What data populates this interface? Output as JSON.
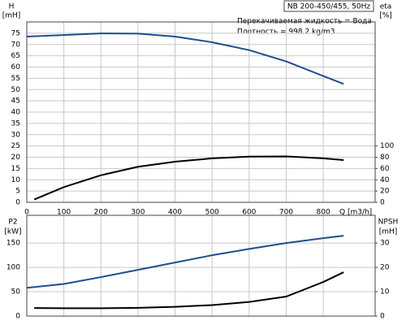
{
  "chart_data": [
    {
      "type": "line",
      "title": "NB 200-450/455, 50Hz",
      "annotations": [
        "Перекачиваемая жидкость = Вода",
        "Плотность = 998.2 kg/m3"
      ],
      "ylabel": "H",
      "yunit": "[mH]",
      "y2label": "eta",
      "y2unit": "[%]",
      "xlabel": "Q [m3/h]",
      "xlim": [
        0,
        940
      ],
      "xticks": [
        0,
        100,
        200,
        300,
        400,
        500,
        600,
        700,
        800
      ],
      "ylim": [
        0,
        80
      ],
      "yticks": [
        0,
        5,
        10,
        15,
        20,
        25,
        30,
        35,
        40,
        45,
        50,
        55,
        60,
        65,
        70,
        75
      ],
      "y2lim": [
        0,
        320
      ],
      "y2ticks": [
        0,
        20,
        40,
        60,
        80,
        100
      ],
      "grid": true,
      "series": [
        {
          "color": "#1f4e8c",
          "x": [
            0,
            100,
            200,
            300,
            400,
            500,
            600,
            700,
            800,
            855
          ],
          "values": [
            73.5,
            74.2,
            74.9,
            74.8,
            73.5,
            71,
            67.5,
            62.5,
            56,
            52.5
          ]
        },
        {
          "color": "#000000",
          "axis": "y2",
          "x": [
            20,
            100,
            200,
            300,
            400,
            500,
            600,
            700,
            800,
            855
          ],
          "values": [
            5,
            27,
            48,
            63,
            72,
            78,
            81,
            81.5,
            78,
            75
          ]
        }
      ]
    },
    {
      "type": "line",
      "ylabel": "P2",
      "yunit": "[kW]",
      "y2label": "NPSH",
      "y2unit": "[mH]",
      "xlim": [
        0,
        940
      ],
      "ylim": [
        0,
        207
      ],
      "yticks": [
        0,
        50,
        100,
        150
      ],
      "y2lim": [
        0,
        41.4
      ],
      "y2ticks": [
        0,
        10,
        20,
        30
      ],
      "grid": true,
      "series": [
        {
          "color": "#1f4e8c",
          "x": [
            0,
            100,
            200,
            300,
            400,
            500,
            600,
            700,
            800,
            855
          ],
          "values": [
            58,
            66,
            80,
            95,
            110,
            125,
            138,
            150,
            160,
            165
          ]
        },
        {
          "color": "#000000",
          "axis": "y2",
          "x": [
            20,
            100,
            200,
            300,
            400,
            500,
            600,
            700,
            800,
            855
          ],
          "values": [
            3.3,
            3.2,
            3.2,
            3.4,
            3.8,
            4.5,
            5.8,
            8,
            14,
            18
          ]
        }
      ]
    }
  ]
}
